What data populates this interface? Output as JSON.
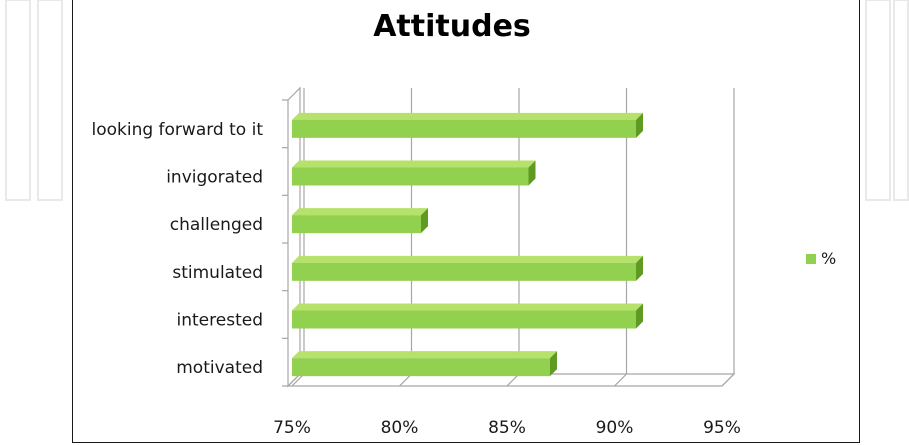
{
  "chart_data": {
    "type": "bar",
    "orientation": "horizontal",
    "title": "Attitudes",
    "categories": [
      "looking forward to it",
      "invigorated",
      "challenged",
      "stimulated",
      "interested",
      "motivated"
    ],
    "series": [
      {
        "name": "%",
        "values": [
          0.91,
          0.86,
          0.81,
          0.91,
          0.91,
          0.87
        ]
      }
    ],
    "x_ticks": [
      "75%",
      "80%",
      "85%",
      "90%",
      "95%"
    ],
    "xlim": [
      0.75,
      0.95
    ],
    "grid": "vertical gridlines",
    "legend": "right",
    "colors": {
      "bar": "#92d050",
      "bar_top": "#b6e26b",
      "bar_side": "#5f9a23",
      "grid": "#a6a6a6"
    }
  }
}
